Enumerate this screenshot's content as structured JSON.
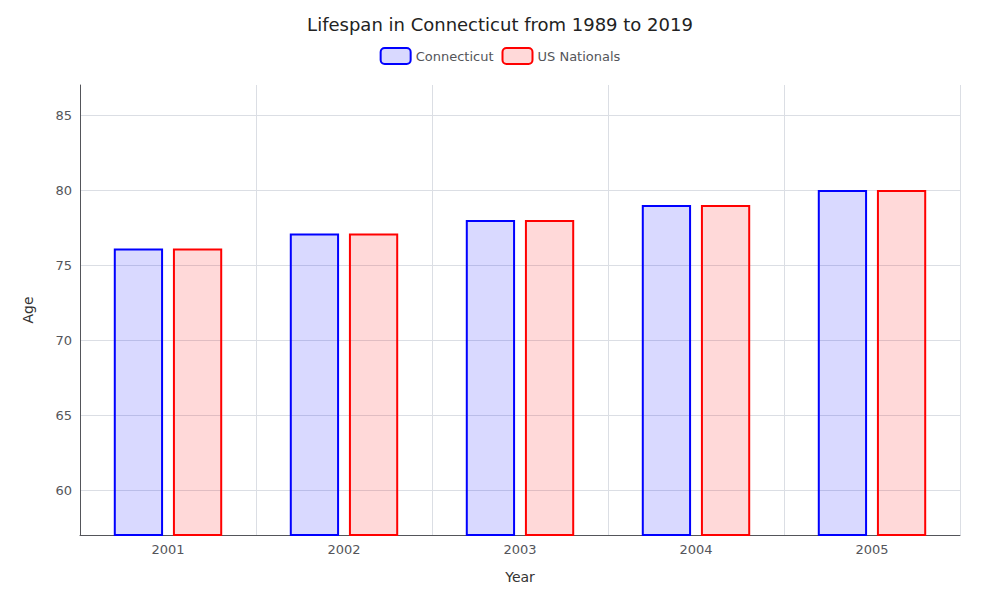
{
  "chart_data": {
    "type": "bar",
    "title": "Lifespan in Connecticut from 1989 to 2019",
    "xlabel": "Year",
    "ylabel": "Age",
    "categories": [
      "2001",
      "2002",
      "2003",
      "2004",
      "2005"
    ],
    "series": [
      {
        "name": "Connecticut",
        "color": "#0000ff",
        "values": [
          76.1,
          77.1,
          78.0,
          79.0,
          80.0
        ]
      },
      {
        "name": "US Nationals",
        "color": "#ff0000",
        "values": [
          76.1,
          77.1,
          78.0,
          79.0,
          80.0
        ]
      }
    ],
    "ylim": [
      57,
      87
    ],
    "yticks": [
      60,
      65,
      70,
      75,
      80,
      85
    ],
    "grid": true,
    "legend": "top"
  }
}
